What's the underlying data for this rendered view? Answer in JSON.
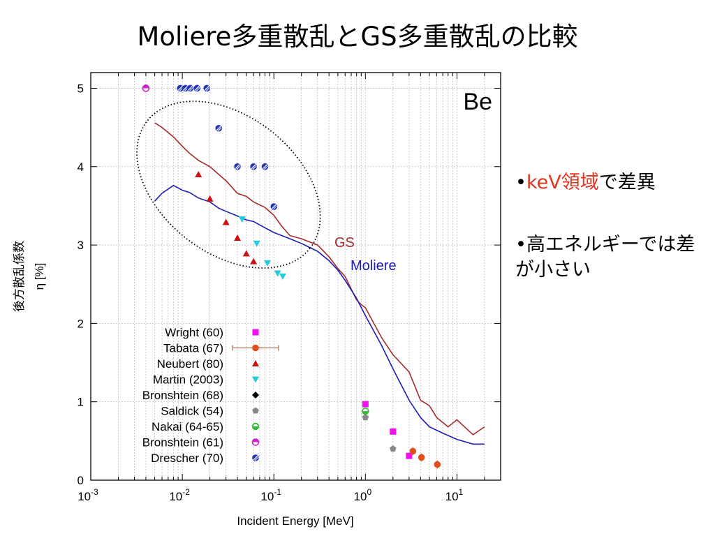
{
  "slide": {
    "title": "Moliere多重散乱とGS多重散乱の比較",
    "bullets": [
      {
        "mark": "•",
        "highlight": "keV領域",
        "rest": "で差異",
        "highlight_color": "#e0351f"
      },
      {
        "mark": "•",
        "highlight": "",
        "rest": "高エネルギーでは差が小さい",
        "highlight_color": "#e0351f"
      }
    ]
  },
  "chart_data": {
    "type": "scatter",
    "element_label": "Be",
    "xlabel": "Incident Energy [MeV]",
    "ylabel": "後方散乱係数",
    "ylabel2": "η [%]",
    "x_scale": "log",
    "xlim": [
      0.001,
      30
    ],
    "ylim": [
      0,
      5.2
    ],
    "x_ticks": [
      {
        "value": 0.001,
        "base": "10",
        "exp": "-3"
      },
      {
        "value": 0.01,
        "base": "10",
        "exp": "-2"
      },
      {
        "value": 0.1,
        "base": "10",
        "exp": "-1"
      },
      {
        "value": 1,
        "base": "10",
        "exp": "0"
      },
      {
        "value": 10,
        "base": "10",
        "exp": "1"
      }
    ],
    "y_ticks": [
      0,
      1,
      2,
      3,
      4,
      5
    ],
    "grid": true,
    "legend_position": "bottom-left",
    "lines": [
      {
        "name": "GS",
        "color": "#a52a2a",
        "x": [
          0.005,
          0.006,
          0.008,
          0.01,
          0.012,
          0.015,
          0.02,
          0.025,
          0.03,
          0.04,
          0.05,
          0.06,
          0.08,
          0.1,
          0.12,
          0.15,
          0.2,
          0.3,
          0.4,
          0.5,
          0.6,
          0.8,
          0.9,
          1,
          1.5,
          2,
          3,
          4,
          5,
          6,
          8,
          10,
          15,
          20
        ],
        "y": [
          4.56,
          4.5,
          4.38,
          4.26,
          4.17,
          4.08,
          4.0,
          3.9,
          3.82,
          3.66,
          3.62,
          3.55,
          3.48,
          3.38,
          3.25,
          3.12,
          3.08,
          3.0,
          2.85,
          2.7,
          2.6,
          2.3,
          2.24,
          2.2,
          1.82,
          1.6,
          1.38,
          1.02,
          0.95,
          0.8,
          0.68,
          0.77,
          0.58,
          0.68
        ]
      },
      {
        "name": "Moliere",
        "color": "#1c1cb4",
        "x": [
          0.005,
          0.006,
          0.008,
          0.01,
          0.012,
          0.015,
          0.02,
          0.025,
          0.03,
          0.04,
          0.05,
          0.06,
          0.08,
          0.1,
          0.15,
          0.2,
          0.3,
          0.4,
          0.5,
          0.6,
          0.8,
          1,
          1.5,
          2,
          3,
          4,
          5,
          7,
          10,
          15,
          20
        ],
        "y": [
          3.56,
          3.66,
          3.76,
          3.7,
          3.67,
          3.6,
          3.55,
          3.47,
          3.43,
          3.37,
          3.32,
          3.3,
          3.22,
          3.16,
          3.08,
          3.02,
          2.92,
          2.8,
          2.68,
          2.55,
          2.32,
          2.1,
          1.72,
          1.42,
          1.02,
          0.8,
          0.68,
          0.6,
          0.52,
          0.46,
          0.46
        ]
      }
    ],
    "series": [
      {
        "name": "Wright (60)",
        "color": "#ee11ee",
        "marker": "square",
        "points": [
          {
            "x": 1,
            "y": 0.97
          },
          {
            "x": 2,
            "y": 0.62
          },
          {
            "x": 3,
            "y": 0.31
          }
        ]
      },
      {
        "name": "Tabata (67)",
        "color": "#e04e1c",
        "marker": "circle",
        "points": [
          {
            "x": 3.3,
            "y": 0.37
          },
          {
            "x": 4.1,
            "y": 0.29
          },
          {
            "x": 6.1,
            "y": 0.2
          }
        ]
      },
      {
        "name": "Neubert (80)",
        "color": "#cc1111",
        "marker": "triangle",
        "points": [
          {
            "x": 0.015,
            "y": 3.9
          },
          {
            "x": 0.02,
            "y": 3.59
          },
          {
            "x": 0.03,
            "y": 3.29
          },
          {
            "x": 0.04,
            "y": 3.09
          },
          {
            "x": 0.05,
            "y": 2.89
          },
          {
            "x": 0.06,
            "y": 2.79
          }
        ]
      },
      {
        "name": "Martin (2003)",
        "color": "#22ccdd",
        "marker": "triangle-down",
        "points": [
          {
            "x": 0.045,
            "y": 3.33
          },
          {
            "x": 0.065,
            "y": 3.02
          },
          {
            "x": 0.085,
            "y": 2.77
          },
          {
            "x": 0.11,
            "y": 2.64
          },
          {
            "x": 0.125,
            "y": 2.6
          }
        ]
      },
      {
        "name": "Bronshtein (68)",
        "color": "#000000",
        "marker": "diamond",
        "points": []
      },
      {
        "name": "Saldick (54)",
        "color": "#888888",
        "marker": "pentagon",
        "points": [
          {
            "x": 1,
            "y": 0.8
          },
          {
            "x": 2,
            "y": 0.4
          }
        ]
      },
      {
        "name": "Nakai (64-65)",
        "color": "#33bb33",
        "marker": "circle-half-open",
        "points": [
          {
            "x": 1,
            "y": 0.88
          }
        ]
      },
      {
        "name": "Bronshtein (61)",
        "color": "#cc22cc",
        "marker": "circle-half",
        "points": [
          {
            "x": 0.004,
            "y": 5.0
          }
        ]
      },
      {
        "name": "Drescher (70)",
        "color": "#2233bb",
        "marker": "circle-hatched",
        "points": [
          {
            "x": 0.0095,
            "y": 5.0
          },
          {
            "x": 0.0108,
            "y": 5.0
          },
          {
            "x": 0.0122,
            "y": 5.0
          },
          {
            "x": 0.0145,
            "y": 5.0
          },
          {
            "x": 0.0185,
            "y": 5.0
          },
          {
            "x": 0.025,
            "y": 4.49
          },
          {
            "x": 0.04,
            "y": 4.0
          },
          {
            "x": 0.06,
            "y": 4.0
          },
          {
            "x": 0.08,
            "y": 4.0
          },
          {
            "x": 0.1,
            "y": 3.49
          }
        ]
      }
    ],
    "tabata_legend_errorbar": true,
    "highlight_ellipse": {
      "center": [
        0.032,
        3.77
      ],
      "style": "dotted"
    }
  }
}
